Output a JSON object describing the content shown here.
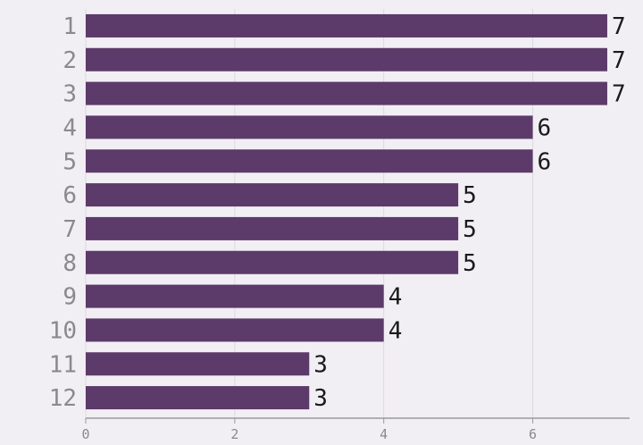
{
  "chart_data": {
    "type": "bar",
    "orientation": "horizontal",
    "categories": [
      "1",
      "2",
      "3",
      "4",
      "5",
      "6",
      "7",
      "8",
      "9",
      "10",
      "11",
      "12"
    ],
    "values": [
      7,
      7,
      7,
      6,
      6,
      5,
      5,
      5,
      4,
      4,
      3,
      3
    ],
    "xlim": [
      0,
      7.3
    ],
    "xticks": [
      0,
      2,
      4,
      6
    ],
    "grid": true,
    "data_labels": true,
    "bar_color": "#5c3a69",
    "grid_color": "#dcd9de",
    "axis_color": "#9a9a9a"
  }
}
